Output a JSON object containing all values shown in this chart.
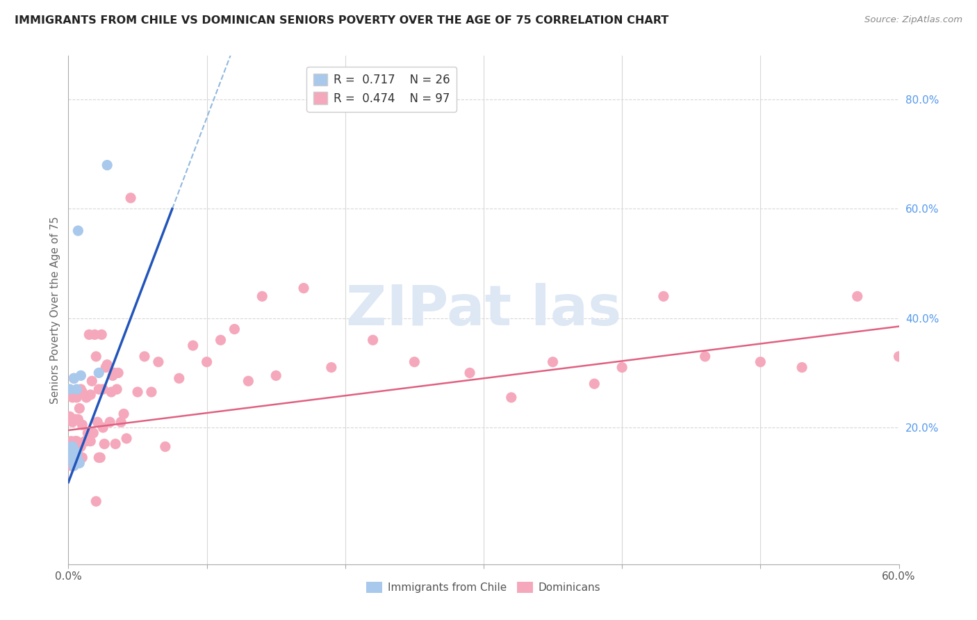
{
  "title": "IMMIGRANTS FROM CHILE VS DOMINICAN SENIORS POVERTY OVER THE AGE OF 75 CORRELATION CHART",
  "source": "Source: ZipAtlas.com",
  "ylabel": "Seniors Poverty Over the Age of 75",
  "xlim": [
    0.0,
    0.6
  ],
  "ylim": [
    -0.05,
    0.88
  ],
  "chile_R": 0.717,
  "chile_N": 26,
  "dominican_R": 0.474,
  "dominican_N": 97,
  "chile_color": "#a8c8ec",
  "dominican_color": "#f5a8bc",
  "chile_line_color": "#2255bb",
  "dominican_line_color": "#e06080",
  "dashed_line_color": "#90b8e0",
  "background_color": "#ffffff",
  "watermark_color": "#dde8f4",
  "chile_scatter_x": [
    0.001,
    0.001,
    0.002,
    0.002,
    0.002,
    0.002,
    0.003,
    0.003,
    0.003,
    0.003,
    0.003,
    0.004,
    0.004,
    0.004,
    0.004,
    0.005,
    0.005,
    0.006,
    0.006,
    0.006,
    0.007,
    0.007,
    0.008,
    0.009,
    0.022,
    0.028
  ],
  "chile_scatter_y": [
    0.155,
    0.27,
    0.145,
    0.155,
    0.16,
    0.165,
    0.14,
    0.145,
    0.155,
    0.16,
    0.165,
    0.13,
    0.14,
    0.155,
    0.29,
    0.135,
    0.145,
    0.15,
    0.155,
    0.27,
    0.14,
    0.56,
    0.135,
    0.295,
    0.3,
    0.68
  ],
  "dominican_scatter_x": [
    0.001,
    0.001,
    0.001,
    0.001,
    0.002,
    0.002,
    0.002,
    0.002,
    0.002,
    0.003,
    0.003,
    0.003,
    0.003,
    0.003,
    0.004,
    0.004,
    0.004,
    0.004,
    0.005,
    0.005,
    0.005,
    0.005,
    0.005,
    0.006,
    0.006,
    0.006,
    0.006,
    0.007,
    0.007,
    0.007,
    0.008,
    0.009,
    0.009,
    0.01,
    0.01,
    0.01,
    0.012,
    0.013,
    0.013,
    0.014,
    0.015,
    0.016,
    0.016,
    0.017,
    0.018,
    0.019,
    0.02,
    0.02,
    0.021,
    0.022,
    0.022,
    0.023,
    0.024,
    0.025,
    0.025,
    0.026,
    0.027,
    0.028,
    0.03,
    0.031,
    0.032,
    0.033,
    0.034,
    0.035,
    0.036,
    0.038,
    0.04,
    0.042,
    0.045,
    0.05,
    0.055,
    0.06,
    0.065,
    0.07,
    0.08,
    0.09,
    0.1,
    0.11,
    0.12,
    0.13,
    0.14,
    0.15,
    0.17,
    0.19,
    0.22,
    0.25,
    0.29,
    0.32,
    0.35,
    0.38,
    0.4,
    0.43,
    0.46,
    0.5,
    0.53,
    0.57,
    0.6
  ],
  "dominican_scatter_y": [
    0.135,
    0.15,
    0.16,
    0.22,
    0.13,
    0.145,
    0.155,
    0.165,
    0.175,
    0.14,
    0.155,
    0.165,
    0.21,
    0.255,
    0.145,
    0.155,
    0.165,
    0.29,
    0.14,
    0.155,
    0.165,
    0.175,
    0.215,
    0.145,
    0.16,
    0.175,
    0.255,
    0.145,
    0.16,
    0.215,
    0.235,
    0.165,
    0.27,
    0.145,
    0.205,
    0.265,
    0.175,
    0.175,
    0.255,
    0.19,
    0.37,
    0.175,
    0.26,
    0.285,
    0.19,
    0.37,
    0.065,
    0.33,
    0.21,
    0.145,
    0.27,
    0.145,
    0.37,
    0.2,
    0.27,
    0.17,
    0.31,
    0.315,
    0.21,
    0.265,
    0.295,
    0.3,
    0.17,
    0.27,
    0.3,
    0.21,
    0.225,
    0.18,
    0.62,
    0.265,
    0.33,
    0.265,
    0.32,
    0.165,
    0.29,
    0.35,
    0.32,
    0.36,
    0.38,
    0.285,
    0.44,
    0.295,
    0.455,
    0.31,
    0.36,
    0.32,
    0.3,
    0.255,
    0.32,
    0.28,
    0.31,
    0.44,
    0.33,
    0.32,
    0.31,
    0.44,
    0.33
  ],
  "chile_line_x0": 0.0,
  "chile_line_y0": 0.1,
  "chile_line_x1": 0.075,
  "chile_line_y1": 0.6,
  "dom_line_x0": 0.0,
  "dom_line_y0": 0.195,
  "dom_line_x1": 0.6,
  "dom_line_y1": 0.385
}
